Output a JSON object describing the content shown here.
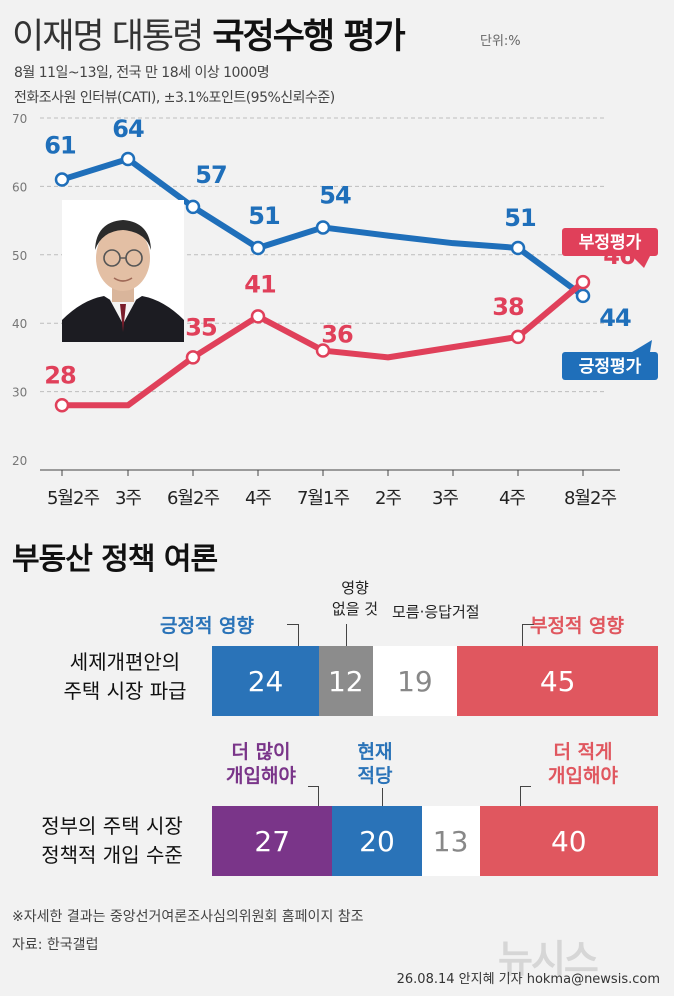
{
  "header": {
    "title_light": "이재명 대통령",
    "title_bold": "국정수행 평가",
    "unit": "단위:%",
    "subtitle_1": "8월 11일~13일, 전국 만 18세 이상 1000명",
    "subtitle_2": "전화조사원 인터뷰(CATI), ±3.1%포인트(95%신뢰수준)"
  },
  "chart_data": [
    {
      "type": "line",
      "categories": [
        "5월2주",
        "3주",
        "6월2주",
        "4주",
        "7월1주",
        "2주",
        "3주",
        "4주",
        "8월2주"
      ],
      "ylim": [
        20,
        70
      ],
      "yticks": [
        20,
        30,
        40,
        50,
        60,
        70
      ],
      "grid": true,
      "series": [
        {
          "name": "긍정평가",
          "color": "#1f6fba",
          "values": [
            61,
            64,
            57,
            51,
            54,
            52.8,
            51.7,
            51,
            44
          ],
          "labels": [
            "61",
            "64",
            "57",
            "51",
            "54",
            "",
            "",
            "51",
            "44"
          ]
        },
        {
          "name": "부정평가",
          "color": "#e0405a",
          "values": [
            28,
            28,
            35,
            41,
            36,
            35,
            36.5,
            38,
            46
          ],
          "labels": [
            "28",
            "",
            "35",
            "41",
            "36",
            "",
            "",
            "38",
            "46"
          ]
        }
      ]
    },
    {
      "type": "bar",
      "stacked": true,
      "orientation": "horizontal",
      "rows": [
        {
          "label_line1": "세제개편안의",
          "label_line2": "주택 시장 파급",
          "segments": [
            {
              "category": "긍정적 영향",
              "value": 24,
              "color": "#2a73b8"
            },
            {
              "category": "영향 없을 것",
              "value": 12,
              "color": "#8c8c8c"
            },
            {
              "category": "모름·응답거절",
              "value": 19,
              "color": "#ffffff"
            },
            {
              "category": "부정적 영향",
              "value": 45,
              "color": "#e0575f"
            }
          ]
        },
        {
          "label_line1": "정부의 주택 시장",
          "label_line2": "정책적 개입 수준",
          "segments": [
            {
              "category": "더 많이 개입해야",
              "value": 27,
              "color": "#7a3589"
            },
            {
              "category": "현재 적당",
              "value": 20,
              "color": "#2a73b8"
            },
            {
              "category": "모름·응답거절",
              "value": 13,
              "color": "#ffffff"
            },
            {
              "category": "더 적게 개입해야",
              "value": 40,
              "color": "#e0575f"
            }
          ]
        }
      ]
    }
  ],
  "section2": {
    "title": "부동산 정책 여론",
    "row1_labels": {
      "pos": "긍정적 영향",
      "none_1": "영향",
      "none_2": "없을 것",
      "unknown": "모름·응답거절",
      "neg": "부정적 영향"
    },
    "row2_labels": {
      "more_1": "더 많이",
      "more_2": "개입해야",
      "ok_1": "현재",
      "ok_2": "적당",
      "less_1": "더 적게",
      "less_2": "개입해야"
    }
  },
  "footer": {
    "note": "※자세한 결과는 중앙선거여론조사심의위원회 홈페이지 참조",
    "source": "자료: 한국갤럽",
    "credit": "26.08.14 안지혜 기자 hokma@newsis.com",
    "watermark": "뉴시스"
  }
}
